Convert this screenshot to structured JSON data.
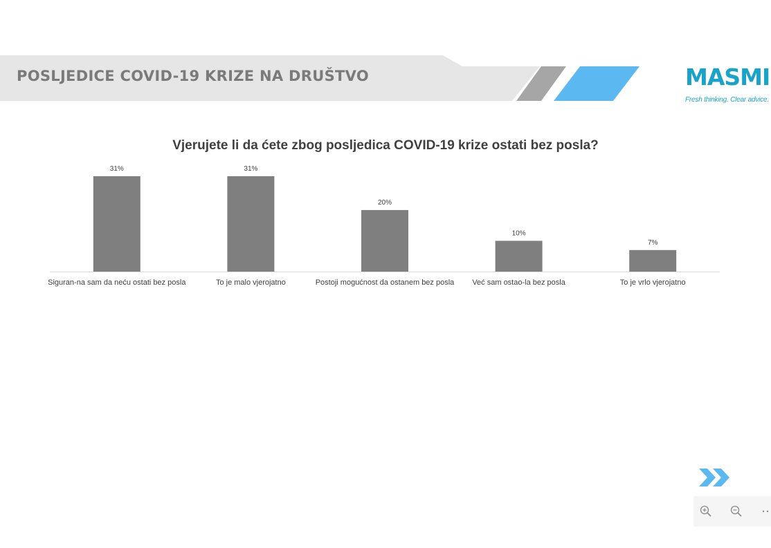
{
  "header": {
    "title": "POSLJEDICE COVID-19 KRIZE NA DRUŠTVO",
    "logo_word": "MASMI",
    "logo_tagline": "Fresh thinking. Clear advice.",
    "colors": {
      "banner": "#e6e6e6",
      "stripe_gray": "#a6a6a6",
      "stripe_blue": "#5cb8f0",
      "logo": "#1aa3c8"
    }
  },
  "chart_data": {
    "type": "bar",
    "title": "Vjerujete li da ćete zbog posljedica COVID-19 krize ostati bez posla?",
    "categories": [
      "Siguran-na sam da neću ostati bez posla",
      "To je malo vjerojatno",
      "Postoji mogućnost da ostanem bez posla",
      "Već sam ostao-la bez posla",
      "To je vrlo vjerojatno"
    ],
    "values": [
      31,
      31,
      20,
      10,
      7
    ],
    "data_labels": [
      "31%",
      "31%",
      "20%",
      "10%",
      "7%"
    ],
    "unit": "%",
    "ylim": [
      0,
      31
    ],
    "bar_color": "#7f7f7f",
    "grid": false,
    "legend": "none"
  },
  "controls": {
    "next_icon": "double-chevron-right-icon",
    "zoom_in_icon": "zoom-in-icon",
    "zoom_out_icon": "zoom-out-icon",
    "more_icon": "more-icon",
    "accent": "#5cb8f0"
  }
}
